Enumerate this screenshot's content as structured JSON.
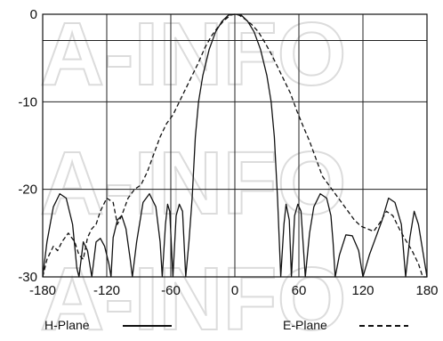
{
  "chart_data": {
    "type": "line",
    "title": "",
    "xlabel": "",
    "ylabel": "",
    "xlim": [
      -180,
      180
    ],
    "ylim": [
      -30,
      0
    ],
    "x_ticks": [
      -180,
      -120,
      -60,
      0,
      60,
      120,
      180
    ],
    "y_ticks": [
      0,
      -10,
      -20,
      -30
    ],
    "y_gridlines": [
      0,
      -3,
      -10,
      -20,
      -30
    ],
    "grid": true,
    "legend_position": "bottom",
    "series": [
      {
        "name": "H-Plane",
        "style": "solid",
        "color": "#111111",
        "points": [
          [
            -180,
            -30
          ],
          [
            -176,
            -26
          ],
          [
            -170,
            -22
          ],
          [
            -164,
            -20.5
          ],
          [
            -158,
            -21
          ],
          [
            -152,
            -24
          ],
          [
            -148,
            -29
          ],
          [
            -146,
            -30
          ],
          [
            -142,
            -26
          ],
          [
            -138,
            -27
          ],
          [
            -134,
            -30
          ],
          [
            -130,
            -26
          ],
          [
            -126,
            -25.6
          ],
          [
            -122,
            -26.5
          ],
          [
            -118,
            -28.5
          ],
          [
            -116,
            -30
          ],
          [
            -114,
            -25.5
          ],
          [
            -110,
            -23.5
          ],
          [
            -106,
            -23
          ],
          [
            -102,
            -24.5
          ],
          [
            -98,
            -28
          ],
          [
            -96,
            -30
          ],
          [
            -92,
            -26
          ],
          [
            -86,
            -21.5
          ],
          [
            -80,
            -20.5
          ],
          [
            -74,
            -22
          ],
          [
            -70,
            -26
          ],
          [
            -68,
            -30
          ],
          [
            -65,
            -24
          ],
          [
            -63,
            -21.7
          ],
          [
            -61,
            -22.5
          ],
          [
            -58,
            -30
          ],
          [
            -55,
            -23
          ],
          [
            -52,
            -21.7
          ],
          [
            -49,
            -22.5
          ],
          [
            -46,
            -30
          ],
          [
            -43,
            -26
          ],
          [
            -40,
            -21
          ],
          [
            -37,
            -14
          ],
          [
            -34,
            -10
          ],
          [
            -30,
            -7
          ],
          [
            -24,
            -4
          ],
          [
            -18,
            -2
          ],
          [
            -12,
            -0.8
          ],
          [
            -6,
            -0.1
          ],
          [
            0,
            0
          ],
          [
            6,
            -0.1
          ],
          [
            12,
            -0.8
          ],
          [
            18,
            -2
          ],
          [
            24,
            -4
          ],
          [
            30,
            -7
          ],
          [
            34,
            -10
          ],
          [
            37,
            -14
          ],
          [
            40,
            -21
          ],
          [
            43,
            -30
          ],
          [
            46,
            -24
          ],
          [
            48,
            -21.7
          ],
          [
            51,
            -23.5
          ],
          [
            53,
            -30
          ],
          [
            56,
            -23
          ],
          [
            59,
            -21.7
          ],
          [
            62,
            -22.5
          ],
          [
            66,
            -30
          ],
          [
            70,
            -25
          ],
          [
            74,
            -22
          ],
          [
            80,
            -20.5
          ],
          [
            86,
            -21
          ],
          [
            90,
            -23
          ],
          [
            92,
            -26
          ],
          [
            94,
            -30
          ],
          [
            98,
            -27.5
          ],
          [
            104,
            -25.2
          ],
          [
            110,
            -25.3
          ],
          [
            116,
            -27
          ],
          [
            120,
            -30
          ],
          [
            126,
            -27.5
          ],
          [
            132,
            -25.5
          ],
          [
            138,
            -23.5
          ],
          [
            144,
            -21
          ],
          [
            150,
            -21.5
          ],
          [
            156,
            -24
          ],
          [
            160,
            -30
          ],
          [
            164,
            -25.5
          ],
          [
            168,
            -22.5
          ],
          [
            172,
            -24
          ],
          [
            176,
            -27
          ],
          [
            180,
            -30
          ]
        ]
      },
      {
        "name": "E-Plane",
        "style": "dashed",
        "color": "#111111",
        "points": [
          [
            -180,
            -30
          ],
          [
            -176,
            -28
          ],
          [
            -170,
            -26.5
          ],
          [
            -166,
            -27
          ],
          [
            -162,
            -26
          ],
          [
            -156,
            -25
          ],
          [
            -150,
            -26
          ],
          [
            -146,
            -27.5
          ],
          [
            -142,
            -28
          ],
          [
            -138,
            -25.5
          ],
          [
            -134,
            -24.5
          ],
          [
            -130,
            -24
          ],
          [
            -126,
            -22.5
          ],
          [
            -120,
            -21
          ],
          [
            -114,
            -21.5
          ],
          [
            -110,
            -24
          ],
          [
            -106,
            -23
          ],
          [
            -100,
            -21
          ],
          [
            -94,
            -20
          ],
          [
            -88,
            -19.5
          ],
          [
            -82,
            -18
          ],
          [
            -76,
            -16
          ],
          [
            -70,
            -14
          ],
          [
            -64,
            -12.5
          ],
          [
            -58,
            -11.5
          ],
          [
            -52,
            -10
          ],
          [
            -46,
            -8.5
          ],
          [
            -40,
            -7
          ],
          [
            -34,
            -5.5
          ],
          [
            -28,
            -3.8
          ],
          [
            -22,
            -2.5
          ],
          [
            -16,
            -1.5
          ],
          [
            -10,
            -0.7
          ],
          [
            -4,
            -0.1
          ],
          [
            0,
            0
          ],
          [
            4,
            -0.1
          ],
          [
            10,
            -0.6
          ],
          [
            16,
            -1.2
          ],
          [
            22,
            -2
          ],
          [
            28,
            -3.2
          ],
          [
            34,
            -4.5
          ],
          [
            40,
            -6
          ],
          [
            46,
            -7.5
          ],
          [
            52,
            -9
          ],
          [
            58,
            -11
          ],
          [
            64,
            -12.8
          ],
          [
            70,
            -14.5
          ],
          [
            76,
            -16.5
          ],
          [
            82,
            -18.5
          ],
          [
            88,
            -19.5
          ],
          [
            94,
            -20.5
          ],
          [
            100,
            -21.5
          ],
          [
            106,
            -22.5
          ],
          [
            112,
            -23.5
          ],
          [
            118,
            -24.2
          ],
          [
            124,
            -24.5
          ],
          [
            130,
            -24.8
          ],
          [
            136,
            -23.8
          ],
          [
            142,
            -22.5
          ],
          [
            148,
            -23
          ],
          [
            154,
            -24.5
          ],
          [
            160,
            -25.8
          ],
          [
            166,
            -27
          ],
          [
            172,
            -28.5
          ],
          [
            176,
            -30
          ],
          [
            180,
            -30
          ]
        ]
      }
    ],
    "legend": [
      {
        "label": "H-Plane",
        "style": "solid"
      },
      {
        "label": "E-Plane",
        "style": "dashed"
      }
    ]
  },
  "watermark": "A-INFO"
}
